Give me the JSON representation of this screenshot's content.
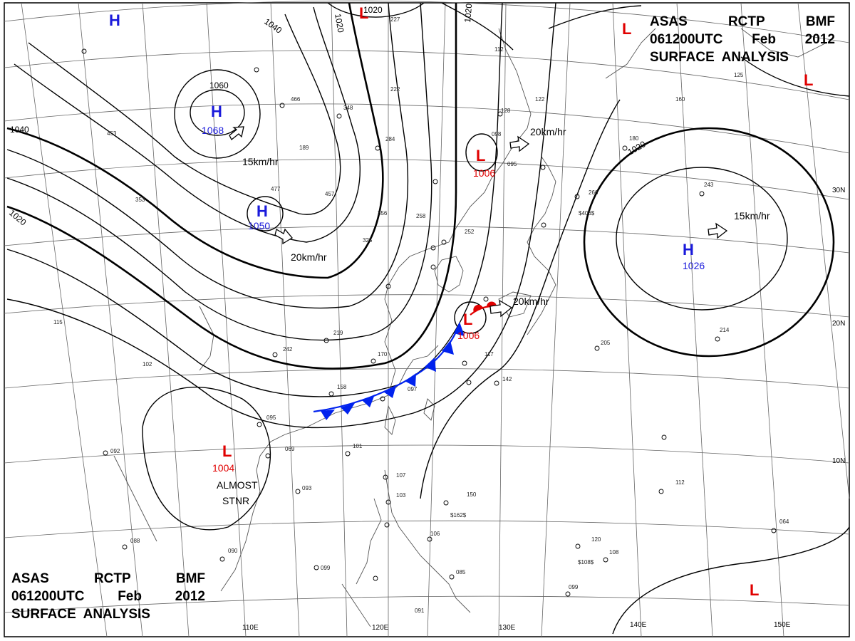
{
  "header_top": {
    "line1": [
      "ASAS",
      "RCTP",
      "BMF"
    ],
    "line2": [
      "061200UTC",
      "Feb",
      "2012"
    ],
    "line3": "SURFACE  ANALYSIS"
  },
  "header_bottom": {
    "line1": [
      "ASAS",
      "RCTP",
      "BMF"
    ],
    "line2": [
      "061200UTC",
      "Feb",
      "2012"
    ],
    "line3": "SURFACE  ANALYSIS"
  },
  "pressure_centers": [
    {
      "type": "H",
      "value": "1068"
    },
    {
      "type": "H",
      "value": "1050"
    },
    {
      "type": "H",
      "value": "1026"
    },
    {
      "type": "H",
      "value": ""
    },
    {
      "type": "L",
      "value": "1006"
    },
    {
      "type": "L",
      "value": "1006"
    },
    {
      "type": "L",
      "value": "1004"
    },
    {
      "type": "L",
      "value": ""
    },
    {
      "type": "L",
      "value": ""
    },
    {
      "type": "L",
      "value": ""
    },
    {
      "type": "L",
      "value": ""
    }
  ],
  "isobar_labels": [
    "1060",
    "1040",
    "1040",
    "1020",
    "1020",
    "1020",
    "1020",
    "1020"
  ],
  "motion_vectors": [
    "15km/hr",
    "20km/hr",
    "20km/hr",
    "15km/hr",
    "20km/hr"
  ],
  "annotations": {
    "almost_line1": "ALMOST",
    "almost_line2": "STNR"
  },
  "grid_labels": {
    "longitude": [
      "110E",
      "120E",
      "130E",
      "140E",
      "150E"
    ],
    "latitude": [
      "30N",
      "20N",
      "10N"
    ]
  },
  "station_values": [
    "466",
    "219",
    "242",
    "170",
    "158",
    "097",
    "095",
    "069",
    "101",
    "093",
    "150",
    "107",
    "103",
    "106",
    "085",
    "099",
    "091",
    "092",
    "090",
    "088",
    "102",
    "115",
    "142",
    "117",
    "120",
    "108",
    "099",
    "064",
    "112",
    "205",
    "214",
    "266",
    "243",
    "180",
    "160",
    "122",
    "128",
    "098",
    "095",
    "284",
    "222",
    "348",
    "453",
    "477",
    "457",
    "353",
    "356",
    "258",
    "252",
    "325",
    "227",
    "189",
    "112",
    "125",
    "$162$",
    "$108$",
    "$406$"
  ],
  "colors": {
    "high": "#1a1adb",
    "low": "#e00000",
    "front_cold": "#0022ee",
    "front_warm": "#e00000",
    "isobar": "#000000",
    "coast": "#555555",
    "grid": "#666666"
  }
}
